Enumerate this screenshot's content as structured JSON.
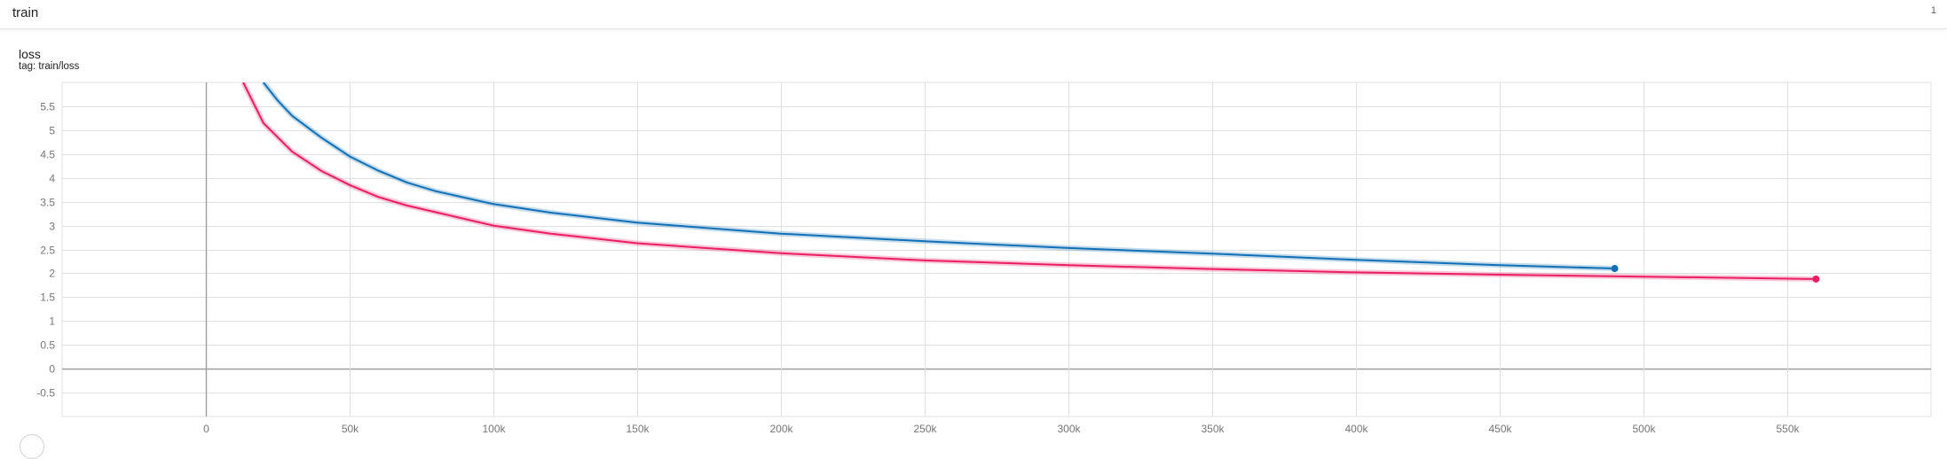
{
  "header": {
    "run_group": "train",
    "card_count": "1"
  },
  "card": {
    "title": "loss",
    "tag": "tag: train/loss"
  },
  "colors": {
    "series_blue": "#1170b5",
    "series_pink": "#e91e63",
    "grid": "#e0e0e0",
    "axis": "#9e9e9e"
  },
  "chart_data": {
    "type": "line",
    "title": "loss",
    "xlabel": "",
    "ylabel": "",
    "xlim": [
      -50000,
      600000
    ],
    "ylim": [
      -1,
      6
    ],
    "x_ticks": [
      0,
      50000,
      100000,
      150000,
      200000,
      250000,
      300000,
      350000,
      400000,
      450000,
      500000,
      550000
    ],
    "x_tick_labels": [
      "0",
      "50k",
      "100k",
      "150k",
      "200k",
      "250k",
      "300k",
      "350k",
      "400k",
      "450k",
      "500k",
      "550k"
    ],
    "y_ticks": [
      -0.5,
      0,
      0.5,
      1,
      1.5,
      2,
      2.5,
      3,
      3.5,
      4,
      4.5,
      5,
      5.5
    ],
    "y_tick_labels": [
      "-0.5",
      "0",
      "0.5",
      "1",
      "1.5",
      "2",
      "2.5",
      "3",
      "3.5",
      "4",
      "4.5",
      "5",
      "5.5"
    ],
    "grid": true,
    "series": [
      {
        "color": "#1170b5",
        "x": [
          20000,
          25000,
          30000,
          40000,
          50000,
          60000,
          70000,
          80000,
          100000,
          120000,
          150000,
          200000,
          250000,
          300000,
          350000,
          400000,
          450000,
          490000
        ],
        "y": [
          6.0,
          5.62,
          5.3,
          4.85,
          4.45,
          4.15,
          3.9,
          3.72,
          3.45,
          3.27,
          3.06,
          2.83,
          2.67,
          2.53,
          2.41,
          2.28,
          2.17,
          2.1
        ]
      },
      {
        "color": "#e91e63",
        "x": [
          13000,
          20000,
          30000,
          40000,
          50000,
          60000,
          70000,
          80000,
          100000,
          120000,
          150000,
          200000,
          250000,
          300000,
          350000,
          400000,
          450000,
          500000,
          560000
        ],
        "y": [
          6.0,
          5.15,
          4.55,
          4.15,
          3.85,
          3.6,
          3.42,
          3.28,
          3.0,
          2.83,
          2.63,
          2.42,
          2.27,
          2.17,
          2.09,
          2.02,
          1.97,
          1.93,
          1.88
        ]
      }
    ]
  }
}
